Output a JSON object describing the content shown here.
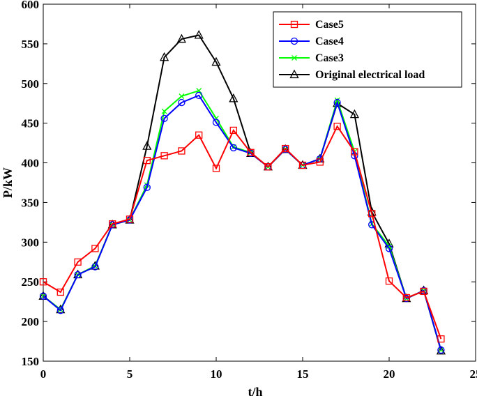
{
  "chart_data": {
    "type": "line",
    "title": "",
    "xlabel": "t/h",
    "ylabel": "P/kW",
    "xlim": [
      0,
      25
    ],
    "ylim": [
      150,
      600
    ],
    "xticks": [
      0,
      5,
      10,
      15,
      20,
      25
    ],
    "yticks": [
      150,
      200,
      250,
      300,
      350,
      400,
      450,
      500,
      550,
      600
    ],
    "grid": false,
    "legend_position": "top-right",
    "x": [
      0,
      1,
      2,
      3,
      4,
      5,
      6,
      7,
      8,
      9,
      10,
      11,
      12,
      13,
      14,
      15,
      16,
      17,
      18,
      19,
      20,
      21,
      22,
      23
    ],
    "series": [
      {
        "name": "Original electrical load",
        "color": "#000000",
        "marker": "triangle",
        "values": [
          232,
          215,
          259,
          270,
          322,
          328,
          421,
          533,
          556,
          561,
          527,
          481,
          412,
          395,
          417,
          397,
          405,
          475,
          461,
          338,
          298,
          229,
          239,
          163
        ]
      },
      {
        "name": "Case3",
        "color": "#00ff00",
        "marker": "x",
        "values": [
          232,
          215,
          259,
          270,
          322,
          328,
          372,
          465,
          484,
          491,
          456,
          420,
          413,
          395,
          417,
          397,
          405,
          479,
          414,
          323,
          295,
          229,
          239,
          164
        ]
      },
      {
        "name": "Case4",
        "color": "#0000ff",
        "marker": "circle",
        "values": [
          232,
          214,
          259,
          269,
          322,
          328,
          369,
          456,
          476,
          485,
          451,
          419,
          412,
          395,
          417,
          397,
          405,
          476,
          409,
          322,
          292,
          229,
          239,
          164
        ]
      },
      {
        "name": "Case5",
        "color": "#ff0000",
        "marker": "square",
        "values": [
          250,
          237,
          275,
          292,
          323,
          329,
          403,
          409,
          415,
          435,
          393,
          441,
          413,
          395,
          418,
          397,
          401,
          446,
          414,
          336,
          251,
          230,
          238,
          178
        ]
      }
    ],
    "legend_order": [
      "Case5",
      "Case4",
      "Case3",
      "Original electrical load"
    ]
  }
}
